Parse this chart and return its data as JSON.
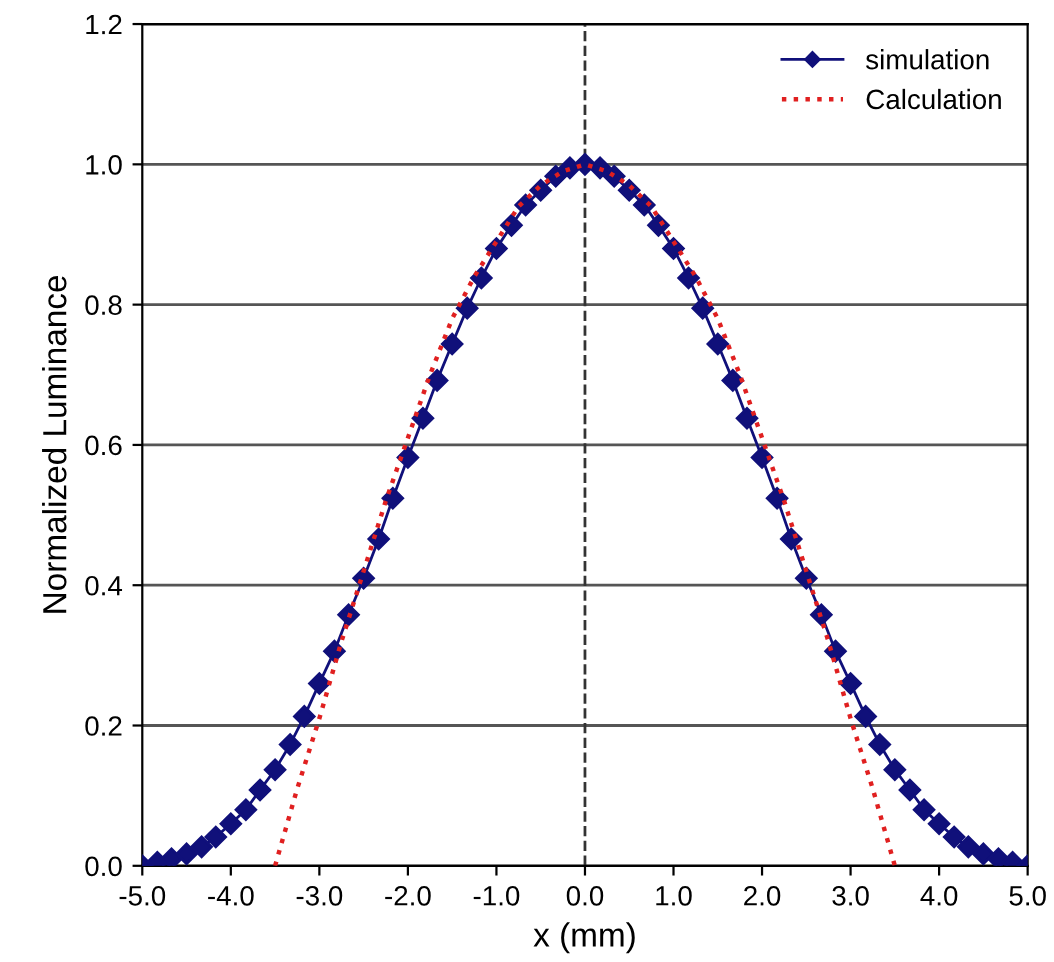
{
  "chart_data": {
    "type": "line",
    "xlabel": "x (mm)",
    "ylabel": "Normalized Luminance",
    "xlim": [
      -5,
      5
    ],
    "ylim": [
      0,
      1.2
    ],
    "xticks": [
      {
        "value": -5,
        "label": "-5.0"
      },
      {
        "value": -4,
        "label": "-4.0"
      },
      {
        "value": -3,
        "label": "-3.0"
      },
      {
        "value": -2,
        "label": "-2.0"
      },
      {
        "value": -1,
        "label": "-1.0"
      },
      {
        "value": 0,
        "label": "0.0"
      },
      {
        "value": 1,
        "label": "1.0"
      },
      {
        "value": 2,
        "label": "2.0"
      },
      {
        "value": 3,
        "label": "3.0"
      },
      {
        "value": 4,
        "label": "4.0"
      },
      {
        "value": 5,
        "label": "5.0"
      }
    ],
    "yticks": [
      {
        "value": 0,
        "label": "0.0"
      },
      {
        "value": 0.2,
        "label": "0.2"
      },
      {
        "value": 0.4,
        "label": "0.4"
      },
      {
        "value": 0.6,
        "label": "0.6"
      },
      {
        "value": 0.8,
        "label": "0.8"
      },
      {
        "value": 1.0,
        "label": "1.0"
      },
      {
        "value": 1.2,
        "label": "1.2"
      }
    ],
    "grid": "y",
    "legend": "top right",
    "ref_lines": [
      {
        "axis": "x",
        "value": 0,
        "color": "#333333",
        "line_style": "dashed"
      }
    ],
    "series": [
      {
        "name": "simulation",
        "color": "#10107a",
        "marker": "diamond",
        "line_style": "solid",
        "x": [
          -5.0,
          -4.83,
          -4.67,
          -4.5,
          -4.33,
          -4.17,
          -4.0,
          -3.83,
          -3.67,
          -3.5,
          -3.33,
          -3.17,
          -3.0,
          -2.83,
          -2.67,
          -2.5,
          -2.33,
          -2.17,
          -2.0,
          -1.83,
          -1.67,
          -1.5,
          -1.33,
          -1.17,
          -1.0,
          -0.83,
          -0.67,
          -0.5,
          -0.33,
          -0.17,
          0.0,
          0.17,
          0.33,
          0.5,
          0.67,
          0.83,
          1.0,
          1.17,
          1.33,
          1.5,
          1.67,
          1.83,
          2.0,
          2.17,
          2.33,
          2.5,
          2.67,
          2.83,
          3.0,
          3.17,
          3.33,
          3.5,
          3.67,
          3.83,
          4.0,
          4.17,
          4.33,
          4.5,
          4.67,
          4.83,
          5.0
        ],
        "values": [
          0.0,
          0.005,
          0.01,
          0.017,
          0.027,
          0.041,
          0.06,
          0.08,
          0.108,
          0.137,
          0.173,
          0.213,
          0.26,
          0.306,
          0.358,
          0.41,
          0.466,
          0.524,
          0.582,
          0.638,
          0.692,
          0.744,
          0.795,
          0.838,
          0.88,
          0.913,
          0.942,
          0.963,
          0.983,
          0.995,
          1.0,
          0.995,
          0.983,
          0.963,
          0.942,
          0.913,
          0.88,
          0.838,
          0.795,
          0.744,
          0.692,
          0.638,
          0.582,
          0.524,
          0.466,
          0.41,
          0.358,
          0.306,
          0.26,
          0.213,
          0.173,
          0.137,
          0.108,
          0.08,
          0.06,
          0.041,
          0.027,
          0.017,
          0.01,
          0.005,
          0.0
        ]
      },
      {
        "name": "Calculation",
        "color": "#e02020",
        "marker": "none",
        "line_style": "dotted",
        "x": [
          -3.5,
          -3.25,
          -3.0,
          -2.75,
          -2.5,
          -2.25,
          -2.0,
          -1.75,
          -1.5,
          -1.25,
          -1.0,
          -0.75,
          -0.5,
          -0.25,
          0.0,
          0.25,
          0.5,
          0.75,
          1.0,
          1.25,
          1.5,
          1.75,
          2.0,
          2.25,
          2.5,
          2.75,
          3.0,
          3.25,
          3.5
        ],
        "values": [
          0.0,
          0.11,
          0.21,
          0.32,
          0.42,
          0.52,
          0.61,
          0.7,
          0.78,
          0.84,
          0.89,
          0.94,
          0.97,
          0.99,
          1.0,
          0.99,
          0.97,
          0.94,
          0.89,
          0.84,
          0.78,
          0.7,
          0.61,
          0.52,
          0.42,
          0.32,
          0.21,
          0.11,
          0.0
        ]
      }
    ]
  }
}
